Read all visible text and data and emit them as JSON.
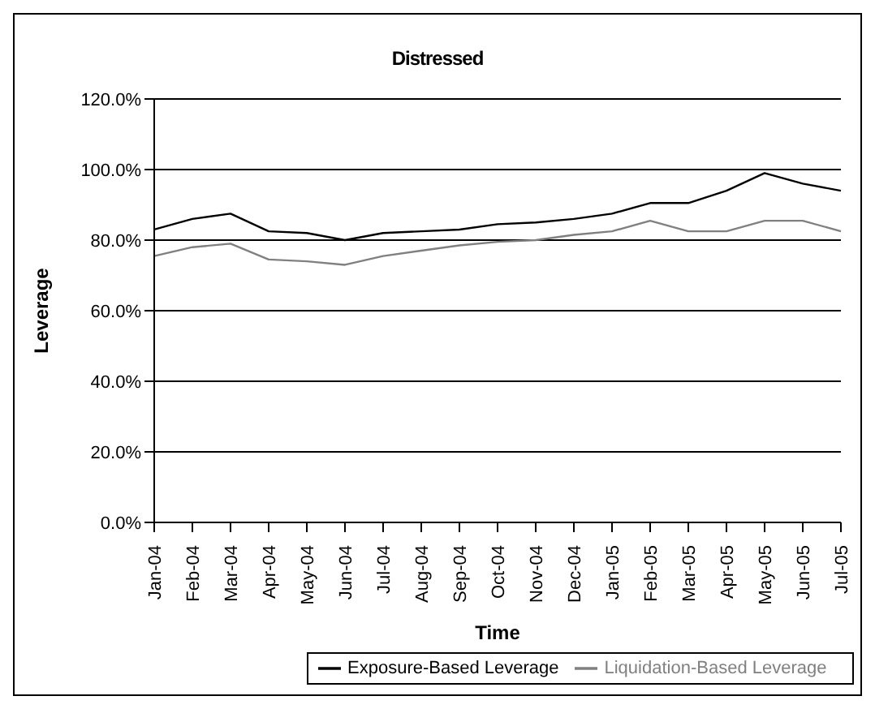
{
  "chart_data": {
    "type": "line",
    "title": "Distressed",
    "xlabel": "Time",
    "ylabel": "Leverage",
    "categories": [
      "Jan-04",
      "Feb-04",
      "Mar-04",
      "Apr-04",
      "May-04",
      "Jun-04",
      "Jul-04",
      "Aug-04",
      "Sep-04",
      "Oct-04",
      "Nov-04",
      "Dec-04",
      "Jan-05",
      "Feb-05",
      "Mar-05",
      "Apr-05",
      "May-05",
      "Jun-05",
      "Jul-05"
    ],
    "series": [
      {
        "name": "Exposure-Based Leverage",
        "color": "#000000",
        "values": [
          0.83,
          0.86,
          0.875,
          0.825,
          0.82,
          0.8,
          0.82,
          0.825,
          0.83,
          0.845,
          0.85,
          0.86,
          0.875,
          0.905,
          0.905,
          0.94,
          0.99,
          0.96,
          0.94
        ]
      },
      {
        "name": "Liquidation-Based Leverage",
        "color": "#808080",
        "values": [
          0.755,
          0.78,
          0.79,
          0.745,
          0.74,
          0.73,
          0.755,
          0.77,
          0.785,
          0.795,
          0.8,
          0.815,
          0.825,
          0.855,
          0.825,
          0.825,
          0.855,
          0.855,
          0.825
        ]
      }
    ],
    "ylim": [
      0,
      1.2
    ],
    "yticks": [
      {
        "value": 0,
        "label": "0.0%"
      },
      {
        "value": 0.2,
        "label": "20.0%"
      },
      {
        "value": 0.4,
        "label": "40.0%"
      },
      {
        "value": 0.6,
        "label": "60.0%"
      },
      {
        "value": 0.8,
        "label": "80.0%"
      },
      {
        "value": 1,
        "label": "100.0%"
      },
      {
        "value": 1.2,
        "label": "120.0%"
      }
    ],
    "grid": "y",
    "legend": "bottom",
    "marker": "none",
    "line_style": "solid"
  }
}
